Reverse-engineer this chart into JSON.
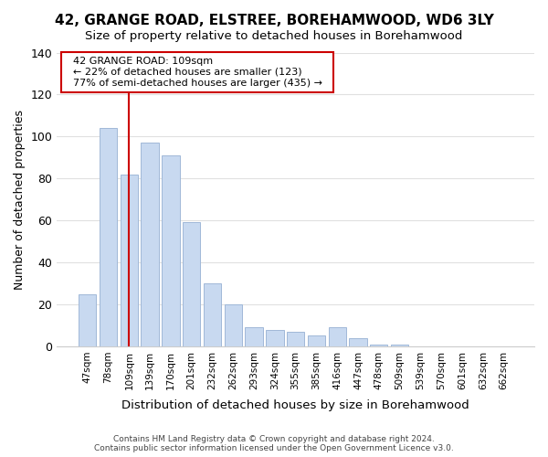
{
  "title": "42, GRANGE ROAD, ELSTREE, BOREHAMWOOD, WD6 3LY",
  "subtitle": "Size of property relative to detached houses in Borehamwood",
  "xlabel": "Distribution of detached houses by size in Borehamwood",
  "ylabel": "Number of detached properties",
  "bar_labels": [
    "47sqm",
    "78sqm",
    "109sqm",
    "139sqm",
    "170sqm",
    "201sqm",
    "232sqm",
    "262sqm",
    "293sqm",
    "324sqm",
    "355sqm",
    "385sqm",
    "416sqm",
    "447sqm",
    "478sqm",
    "509sqm",
    "539sqm",
    "570sqm",
    "601sqm",
    "632sqm",
    "662sqm"
  ],
  "bar_heights": [
    25,
    104,
    82,
    97,
    91,
    59,
    30,
    20,
    9,
    8,
    7,
    5,
    9,
    4,
    1,
    1,
    0,
    0,
    0,
    0,
    0
  ],
  "bar_color": "#c8d9f0",
  "bar_edge_color": "#a0b8d8",
  "reference_line_x": 2,
  "reference_line_color": "#cc0000",
  "annotation_title": "42 GRANGE ROAD: 109sqm",
  "annotation_line1": "← 22% of detached houses are smaller (123)",
  "annotation_line2": "77% of semi-detached houses are larger (435) →",
  "annotation_box_color": "#ffffff",
  "annotation_box_edge_color": "#cc0000",
  "ylim": [
    0,
    140
  ],
  "yticks": [
    0,
    20,
    40,
    60,
    80,
    100,
    120,
    140
  ],
  "footer_line1": "Contains HM Land Registry data © Crown copyright and database right 2024.",
  "footer_line2": "Contains public sector information licensed under the Open Government Licence v3.0.",
  "bg_color": "#ffffff",
  "grid_color": "#e0e0e0"
}
